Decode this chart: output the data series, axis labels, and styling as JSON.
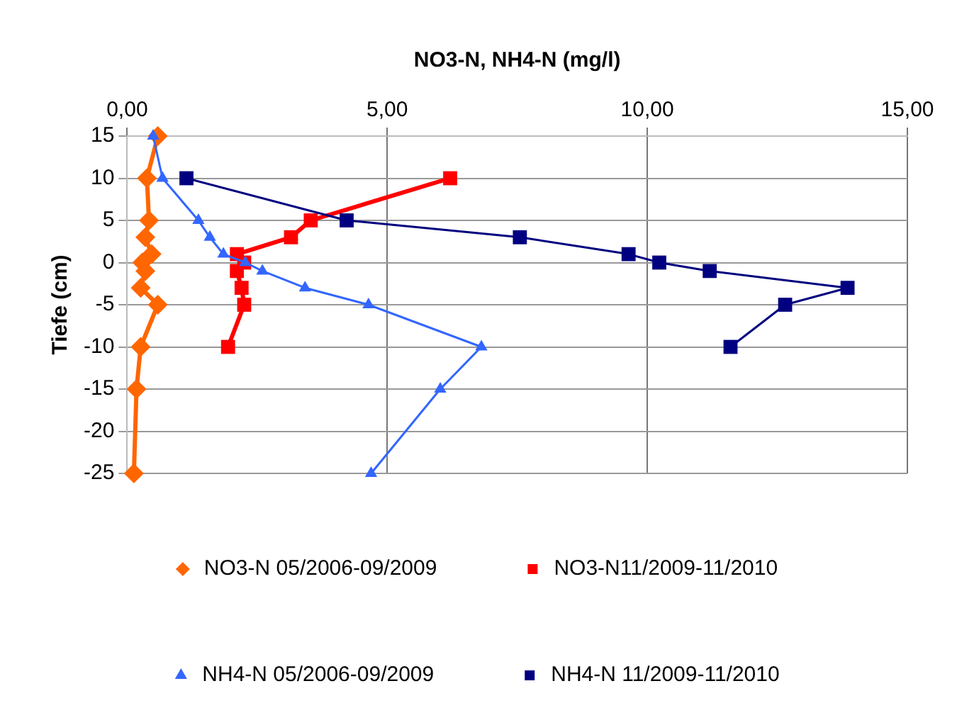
{
  "chart_data": {
    "type": "line",
    "xlabel": "NO3-N, NH4-N (mg/l)",
    "ylabel": "Tiefe (cm)",
    "xlim": [
      0,
      15
    ],
    "xticks": [
      {
        "value": 0,
        "label": "0,00"
      },
      {
        "value": 5,
        "label": "5,00"
      },
      {
        "value": 10,
        "label": "10,00"
      },
      {
        "value": 15,
        "label": "15,00"
      }
    ],
    "ylim": [
      -25,
      15
    ],
    "yticks": [
      -25,
      -20,
      -15,
      -10,
      -5,
      0,
      5,
      10,
      15
    ],
    "grid": true,
    "legend": "bottom",
    "line_style": "solid",
    "series": [
      {
        "name": "NO3-N 05/2006-09/2009",
        "color": "#ff6600",
        "marker": "diamond",
        "x": [
          0.59,
          0.38,
          0.42,
          0.35,
          0.47,
          0.29,
          0.35,
          0.26,
          0.59,
          0.26,
          0.18,
          0.13
        ],
        "values": [
          15,
          10,
          5,
          3,
          1,
          0,
          -1,
          -3,
          -5,
          -10,
          -15,
          -25
        ]
      },
      {
        "name": "NO3-N11/2009-11/2010",
        "color": "#ff0000",
        "marker": "square",
        "x": [
          6.21,
          3.53,
          3.15,
          2.11,
          2.25,
          2.11,
          2.2,
          2.25,
          1.94
        ],
        "values": [
          10,
          5,
          3,
          1,
          0,
          -1,
          -3,
          -5,
          -10
        ]
      },
      {
        "name": "NH4-N 05/2006-09/2009",
        "color": "#3366ff",
        "marker": "triangle",
        "x": [
          0.5,
          0.68,
          1.37,
          1.59,
          1.85,
          2.27,
          2.6,
          3.42,
          4.64,
          6.81,
          6.02,
          4.69
        ],
        "values": [
          15,
          10,
          5,
          3,
          1,
          0,
          -1,
          -3,
          -5,
          -10,
          -15,
          -25
        ]
      },
      {
        "name": "NH4-N 11/2009-11/2010",
        "color": "#000080",
        "marker": "square",
        "x": [
          1.14,
          4.22,
          7.55,
          9.64,
          10.23,
          11.2,
          13.85,
          12.65,
          11.6
        ],
        "values": [
          10,
          5,
          3,
          1,
          0,
          -1,
          -3,
          -5,
          -10
        ]
      }
    ]
  }
}
